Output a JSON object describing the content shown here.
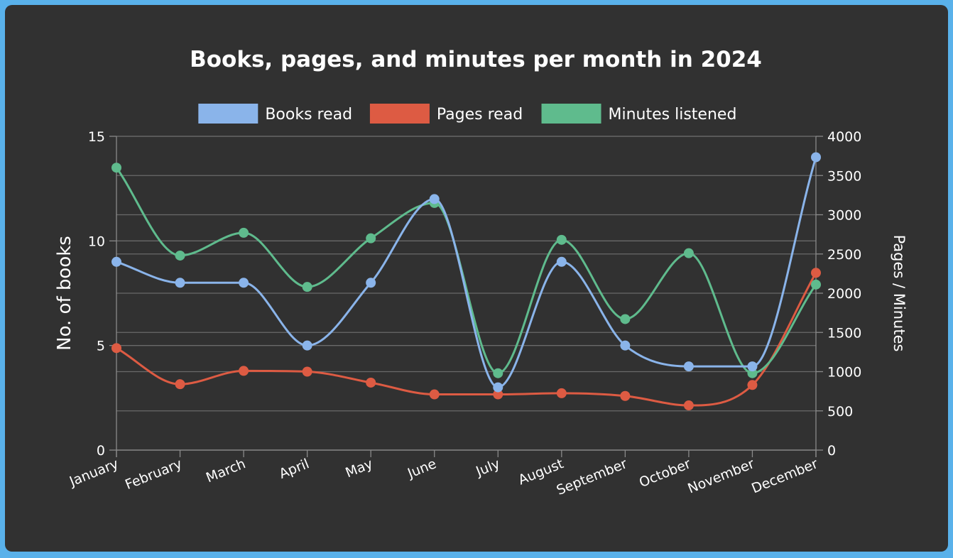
{
  "chart_data": {
    "type": "line",
    "title": "Books, pages, and minutes per month in 2024",
    "categories": [
      "January",
      "February",
      "March",
      "April",
      "May",
      "June",
      "July",
      "August",
      "September",
      "October",
      "November",
      "December"
    ],
    "y_left": {
      "label": "No. of books",
      "range": [
        0,
        15
      ],
      "ticks": [
        0,
        5,
        10,
        15
      ]
    },
    "y_right": {
      "label": "Pages / Minutes",
      "range": [
        0,
        4000
      ],
      "ticks": [
        0,
        500,
        1000,
        1500,
        2000,
        2500,
        3000,
        3500,
        4000
      ]
    },
    "grid": true,
    "legend_position": "top",
    "series": [
      {
        "name": "Books read",
        "axis": "left",
        "color": "#8ab4ea",
        "values": [
          9,
          8,
          8,
          5,
          8,
          12,
          3,
          9,
          5,
          4,
          4,
          14
        ]
      },
      {
        "name": "Pages read",
        "axis": "right",
        "color": "#dd5b43",
        "values": [
          1300,
          840,
          1010,
          1000,
          860,
          710,
          710,
          725,
          690,
          570,
          830,
          2260
        ]
      },
      {
        "name": "Minutes listened",
        "axis": "right",
        "color": "#5fbb8d",
        "values": [
          3600,
          2480,
          2770,
          2080,
          2700,
          3150,
          980,
          2680,
          1670,
          2510,
          980,
          2110
        ]
      }
    ]
  }
}
